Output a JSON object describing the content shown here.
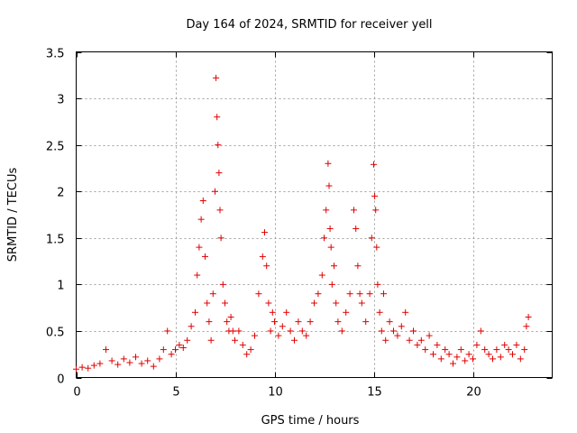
{
  "chart_data": {
    "type": "scatter",
    "title": "Day 164 of 2024, SRMTID for receiver yell",
    "xlabel": "GPS time / hours",
    "ylabel": "SRMTID / TECUs",
    "xlim": [
      0,
      24
    ],
    "ylim": [
      0,
      3.5
    ],
    "xticks": [
      0,
      5,
      10,
      15,
      20
    ],
    "xtick_labels": [
      "0",
      "5",
      "10",
      "15",
      "20"
    ],
    "yticks": [
      0,
      0.5,
      1,
      1.5,
      2,
      2.5,
      3,
      3.5
    ],
    "ytick_labels": [
      "0",
      "0.5",
      "1",
      "1.5",
      "2",
      "2.5",
      "3",
      "3.5"
    ],
    "grid": true,
    "marker": "plus",
    "color": "#e00000",
    "series": [
      {
        "name": "SRMTID",
        "x": [
          0.0,
          0.3,
          0.6,
          0.9,
          1.2,
          1.5,
          1.8,
          2.1,
          2.4,
          2.7,
          3.0,
          3.3,
          3.6,
          3.9,
          4.2,
          4.4,
          4.6,
          4.8,
          5.0,
          5.2,
          5.4,
          5.6,
          5.8,
          6.0,
          6.1,
          6.2,
          6.3,
          6.4,
          6.5,
          6.6,
          6.7,
          6.8,
          6.9,
          7.0,
          7.05,
          7.1,
          7.15,
          7.2,
          7.25,
          7.3,
          7.4,
          7.5,
          7.6,
          7.7,
          7.8,
          7.9,
          8.0,
          8.2,
          8.4,
          8.6,
          8.8,
          9.0,
          9.2,
          9.4,
          9.5,
          9.6,
          9.7,
          9.8,
          9.9,
          10.0,
          10.2,
          10.4,
          10.6,
          10.8,
          11.0,
          11.2,
          11.4,
          11.6,
          11.8,
          12.0,
          12.2,
          12.4,
          12.5,
          12.6,
          12.7,
          12.75,
          12.8,
          12.85,
          12.9,
          13.0,
          13.1,
          13.2,
          13.4,
          13.6,
          13.8,
          14.0,
          14.1,
          14.2,
          14.3,
          14.4,
          14.6,
          14.8,
          14.9,
          15.0,
          15.05,
          15.1,
          15.15,
          15.2,
          15.3,
          15.4,
          15.5,
          15.6,
          15.8,
          16.0,
          16.2,
          16.4,
          16.6,
          16.8,
          17.0,
          17.2,
          17.4,
          17.6,
          17.8,
          18.0,
          18.2,
          18.4,
          18.6,
          18.8,
          19.0,
          19.2,
          19.4,
          19.6,
          19.8,
          20.0,
          20.2,
          20.4,
          20.6,
          20.8,
          21.0,
          21.2,
          21.4,
          21.6,
          21.8,
          22.0,
          22.2,
          22.4,
          22.6,
          22.7,
          22.8
        ],
        "y": [
          0.09,
          0.11,
          0.1,
          0.13,
          0.15,
          0.3,
          0.18,
          0.14,
          0.2,
          0.16,
          0.22,
          0.15,
          0.18,
          0.12,
          0.2,
          0.3,
          0.5,
          0.25,
          0.3,
          0.35,
          0.32,
          0.4,
          0.55,
          0.7,
          1.1,
          1.4,
          1.7,
          1.9,
          1.3,
          0.8,
          0.6,
          0.4,
          0.9,
          2.0,
          3.22,
          2.8,
          2.5,
          2.2,
          1.8,
          1.5,
          1.0,
          0.8,
          0.6,
          0.5,
          0.65,
          0.5,
          0.4,
          0.5,
          0.35,
          0.25,
          0.3,
          0.45,
          0.9,
          1.3,
          1.56,
          1.2,
          0.8,
          0.5,
          0.7,
          0.6,
          0.45,
          0.55,
          0.7,
          0.5,
          0.4,
          0.6,
          0.5,
          0.45,
          0.6,
          0.8,
          0.9,
          1.1,
          1.5,
          1.8,
          2.3,
          2.06,
          1.6,
          1.4,
          1.0,
          1.2,
          0.8,
          0.6,
          0.5,
          0.7,
          0.9,
          1.8,
          1.6,
          1.2,
          0.9,
          0.8,
          0.6,
          0.9,
          1.5,
          2.29,
          1.95,
          1.8,
          1.4,
          1.0,
          0.7,
          0.5,
          0.9,
          0.4,
          0.6,
          0.5,
          0.45,
          0.55,
          0.7,
          0.4,
          0.5,
          0.35,
          0.4,
          0.3,
          0.45,
          0.25,
          0.35,
          0.2,
          0.3,
          0.25,
          0.15,
          0.22,
          0.3,
          0.18,
          0.25,
          0.2,
          0.35,
          0.5,
          0.3,
          0.25,
          0.2,
          0.3,
          0.22,
          0.35,
          0.3,
          0.25,
          0.35,
          0.2,
          0.3,
          0.55,
          0.65
        ]
      }
    ]
  }
}
